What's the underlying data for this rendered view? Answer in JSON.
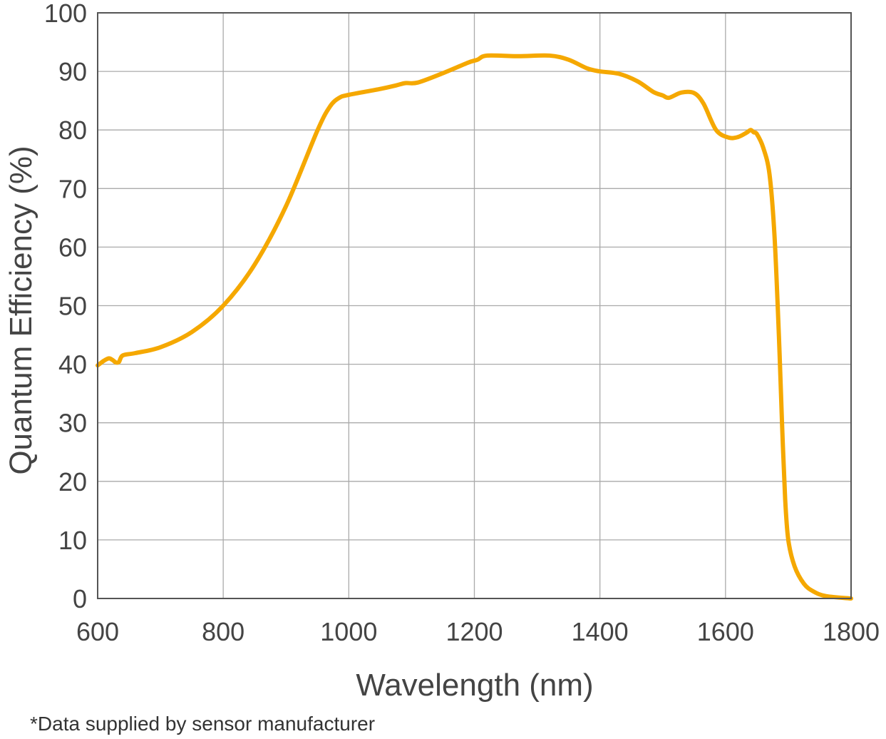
{
  "chart_data": {
    "type": "line",
    "title": "",
    "xlabel": "Wavelength (nm)",
    "ylabel": "Quantum Efficiency (%)",
    "xlim": [
      600,
      1800
    ],
    "ylim": [
      0,
      100
    ],
    "xticks": [
      600,
      800,
      1000,
      1200,
      1400,
      1600,
      1800
    ],
    "yticks": [
      0,
      10,
      20,
      30,
      40,
      50,
      60,
      70,
      80,
      90,
      100
    ],
    "grid": true,
    "line_color": "#F5A800",
    "series": [
      {
        "x": [
          600,
          610,
          618,
          624,
          629,
          634,
          640,
          660,
          700,
          750,
          800,
          850,
          900,
          950,
          970,
          985,
          1000,
          1050,
          1075,
          1090,
          1110,
          1150,
          1190,
          1205,
          1220,
          1270,
          1320,
          1350,
          1380,
          1400,
          1430,
          1460,
          1485,
          1500,
          1510,
          1530,
          1550,
          1565,
          1585,
          1605,
          1620,
          1633,
          1640,
          1645,
          1650,
          1660,
          1670,
          1678,
          1685,
          1690,
          1695,
          1700,
          1710,
          1725,
          1740,
          1760,
          1800
        ],
        "y": [
          39.8,
          40.6,
          41.0,
          40.7,
          40.3,
          40.4,
          41.5,
          41.9,
          42.9,
          45.5,
          50,
          57,
          67,
          79.9,
          84,
          85.5,
          86,
          87,
          87.6,
          88,
          88.1,
          89.7,
          91.5,
          92.0,
          92.7,
          92.6,
          92.7,
          92,
          90.5,
          90,
          89.6,
          88.3,
          86.5,
          85.9,
          85.5,
          86.4,
          86.3,
          84.5,
          80,
          78.7,
          78.8,
          79.5,
          80,
          79.6,
          79.3,
          77,
          72.5,
          62,
          45,
          30,
          17,
          10,
          5.5,
          2.5,
          1.2,
          0.4,
          0
        ]
      }
    ],
    "footnote": "*Data supplied by sensor manufacturer"
  }
}
